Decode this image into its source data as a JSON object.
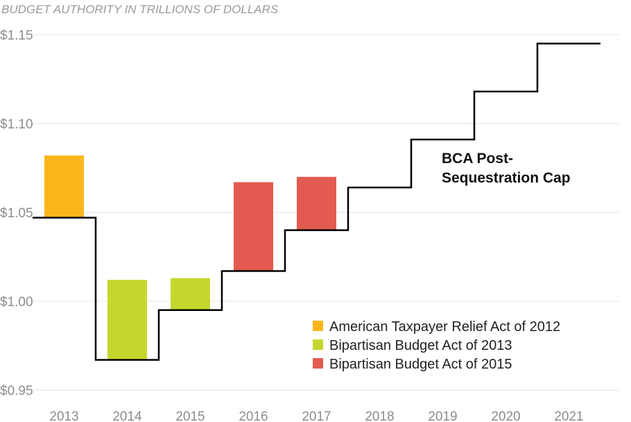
{
  "chart_data": {
    "type": "bar",
    "title": "BUDGET AUTHORITY IN TRILLIONS OF DOLLARS",
    "xlabel": "",
    "ylabel": "",
    "ylim": [
      0.95,
      1.15
    ],
    "yticks": [
      0.95,
      1.0,
      1.05,
      1.1,
      1.15
    ],
    "ytick_labels": [
      "$0.95",
      "$1.00",
      "$1.05",
      "$1.10",
      "$1.15"
    ],
    "grid": true,
    "categories": [
      "2013",
      "2014",
      "2015",
      "2016",
      "2017",
      "2018",
      "2019",
      "2020",
      "2021"
    ],
    "cap_line": {
      "type": "step",
      "values": [
        1.047,
        0.967,
        0.995,
        1.017,
        1.04,
        1.064,
        1.091,
        1.118,
        1.145
      ],
      "color": "#000000",
      "annotation": [
        "BCA Post-",
        "Sequestration Cap"
      ]
    },
    "series": [
      {
        "name": "American Taxpayer Relief Act of 2012",
        "color": "#FBB61B",
        "bars": [
          {
            "category": "2013",
            "from": 1.047,
            "to": 1.082
          }
        ]
      },
      {
        "name": "Bipartisan Budget Act of 2013",
        "color": "#C5D72E",
        "bars": [
          {
            "category": "2014",
            "from": 0.967,
            "to": 1.012
          },
          {
            "category": "2015",
            "from": 0.995,
            "to": 1.013
          }
        ]
      },
      {
        "name": "Bipartisan Budget Act of 2015",
        "color": "#E35B50",
        "bars": [
          {
            "category": "2016",
            "from": 1.017,
            "to": 1.067
          },
          {
            "category": "2017",
            "from": 1.04,
            "to": 1.07
          }
        ]
      }
    ],
    "legend_position": "bottom-right"
  }
}
